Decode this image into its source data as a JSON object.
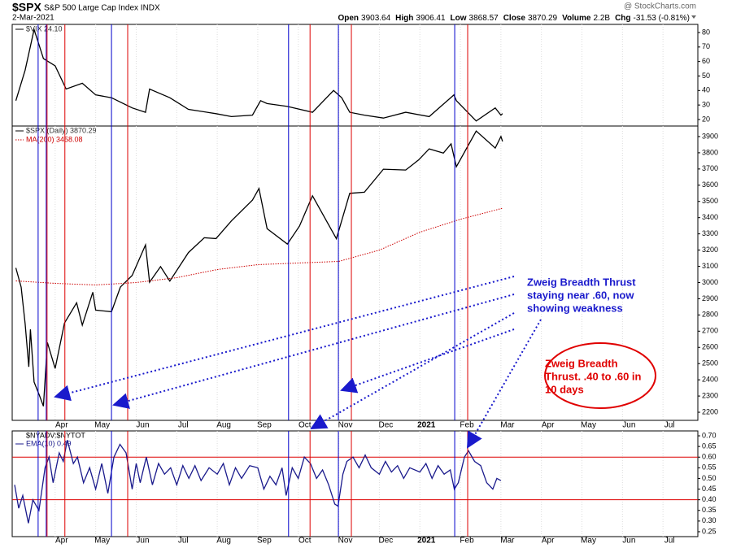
{
  "header": {
    "symbol": "$SPX",
    "name": "S&P 500 Large Cap Index INDX",
    "date": "2-Mar-2021",
    "watermark": "@ StockCharts.com",
    "quote": [
      {
        "label": "Open",
        "value": "3903.64"
      },
      {
        "label": "High",
        "value": "3906.41"
      },
      {
        "label": "Low",
        "value": "3868.57"
      },
      {
        "label": "Close",
        "value": "3870.29"
      },
      {
        "label": "Volume",
        "value": "2.2B"
      },
      {
        "label": "Chg",
        "value": "-31.53 (-0.81%)"
      }
    ]
  },
  "chart_data": [
    {
      "type": "line",
      "ylim": [
        15.5,
        85.6
      ],
      "yticks": [
        20,
        30,
        40,
        50,
        60,
        70,
        80
      ],
      "series": [
        {
          "name": "$VIX 24.10",
          "color": "#000000",
          "x": [
            3.03,
            3.26,
            3.48,
            3.55,
            3.71,
            4.0,
            4.27,
            4.67,
            5.0,
            5.39,
            5.9,
            6.23,
            6.33,
            6.83,
            7.29,
            7.97,
            8.35,
            8.87,
            9.07,
            9.23,
            9.73,
            10.35,
            10.87,
            11.07,
            11.27,
            11.63,
            12.1,
            12.65,
            13.23,
            13.84,
            13.9,
            14.39,
            14.86,
            15.0,
            15.04
          ],
          "values": [
            33,
            54,
            82,
            76,
            62,
            57,
            41,
            45,
            37,
            35,
            28,
            25,
            41,
            35,
            27,
            24,
            22,
            23,
            33,
            31,
            29,
            25,
            40,
            35,
            25,
            23,
            21,
            25,
            22,
            37,
            33,
            19,
            28,
            23,
            24.1
          ]
        }
      ]
    },
    {
      "type": "line",
      "ylim": [
        2150,
        3965
      ],
      "yticks": [
        2200,
        2300,
        2400,
        2500,
        2600,
        2700,
        2800,
        2900,
        3000,
        3100,
        3200,
        3300,
        3400,
        3500,
        3600,
        3700,
        3800,
        3900
      ],
      "series": [
        {
          "name": "$SPX (Daily) 3870.29",
          "color": "#000000",
          "x": [
            3.03,
            3.16,
            3.26,
            3.35,
            3.39,
            3.48,
            3.61,
            3.71,
            3.81,
            4.0,
            4.23,
            4.53,
            4.67,
            4.93,
            5.0,
            5.39,
            5.61,
            5.9,
            6.23,
            6.33,
            6.6,
            6.83,
            7.29,
            7.68,
            7.97,
            8.35,
            8.87,
            9.03,
            9.23,
            9.73,
            10.03,
            10.35,
            10.94,
            11.27,
            11.63,
            12.1,
            12.65,
            12.97,
            13.23,
            13.58,
            13.77,
            13.9,
            14.39,
            14.86,
            15.0,
            15.04
          ],
          "values": [
            3090,
            2972,
            2746,
            2480,
            2711,
            2386,
            2305,
            2237,
            2630,
            2470,
            2750,
            2875,
            2737,
            2940,
            2830,
            2820,
            2972,
            3044,
            3232,
            3002,
            3098,
            3009,
            3185,
            3276,
            3271,
            3380,
            3508,
            3580,
            3332,
            3237,
            3348,
            3535,
            3270,
            3550,
            3557,
            3699,
            3694,
            3756,
            3824,
            3798,
            3855,
            3714,
            3934,
            3829,
            3901,
            3870.29
          ]
        },
        {
          "name": "MA(200) 3458.08",
          "color": "#cc0000",
          "style": "dotted",
          "x": [
            3.03,
            4.0,
            5.0,
            6.0,
            7.0,
            8.0,
            9.0,
            10.0,
            11.0,
            12.0,
            13.0,
            14.0,
            15.04
          ],
          "values": [
            3010,
            2995,
            2985,
            3000,
            3030,
            3080,
            3110,
            3120,
            3130,
            3200,
            3310,
            3390,
            3458.08
          ]
        }
      ],
      "vlines": [
        {
          "x": 3.58,
          "color": "#0000cc"
        },
        {
          "x": 3.78,
          "color": "#0000cc"
        },
        {
          "x": 5.39,
          "color": "#0000cc"
        },
        {
          "x": 9.76,
          "color": "#0000cc"
        },
        {
          "x": 10.99,
          "color": "#0000cc"
        },
        {
          "x": 13.86,
          "color": "#0000cc"
        },
        {
          "x": 3.8,
          "color": "#dd0000"
        },
        {
          "x": 4.24,
          "color": "#dd0000"
        },
        {
          "x": 5.79,
          "color": "#dd0000"
        },
        {
          "x": 10.29,
          "color": "#dd0000"
        },
        {
          "x": 11.31,
          "color": "#dd0000"
        },
        {
          "x": 14.18,
          "color": "#dd0000"
        }
      ],
      "annotations": [
        {
          "lines": [
            "Zweig Breadth Thrust",
            "staying near .60, now",
            "showing weakness"
          ],
          "color": "#1a1acc"
        },
        {
          "lines": [
            "Zweig Breadth",
            "Thrust. .40 to .60 in",
            "10 days"
          ],
          "color": "#e00000"
        }
      ]
    },
    {
      "type": "line",
      "title": "$NYADV:$NYTOT",
      "xlim": [
        2.94,
        19.86
      ],
      "ylim": [
        0.227,
        0.723
      ],
      "yticks": [
        {
          "value": 0.25,
          "label": "0.25"
        },
        {
          "value": 0.3,
          "label": "0.30"
        },
        {
          "value": 0.35,
          "label": "0.35"
        },
        {
          "value": 0.4,
          "label": "0.40"
        },
        {
          "value": 0.45,
          "label": "0.45"
        },
        {
          "value": 0.5,
          "label": "0.50"
        },
        {
          "value": 0.55,
          "label": "0.55"
        },
        {
          "value": 0.6,
          "label": "0.60"
        },
        {
          "value": 0.65,
          "label": "0.65"
        },
        {
          "value": 0.7,
          "label": "0.70"
        }
      ],
      "xticks": [
        {
          "value": 4,
          "label": "Apr"
        },
        {
          "value": 5,
          "label": "May"
        },
        {
          "value": 6,
          "label": "Jun"
        },
        {
          "value": 7,
          "label": "Jul"
        },
        {
          "value": 8,
          "label": "Aug"
        },
        {
          "value": 9,
          "label": "Sep"
        },
        {
          "value": 10,
          "label": "Oct"
        },
        {
          "value": 11,
          "label": "Nov"
        },
        {
          "value": 12,
          "label": "Dec"
        },
        {
          "value": 13,
          "label": "2021"
        },
        {
          "value": 14,
          "label": "Feb"
        },
        {
          "value": 15,
          "label": "Mar"
        },
        {
          "value": 16,
          "label": "Apr"
        },
        {
          "value": 17,
          "label": "May"
        },
        {
          "value": 18,
          "label": "Jun"
        },
        {
          "value": 19,
          "label": "Jul"
        }
      ],
      "hlines": {
        "values": [
          0.6,
          0.4
        ],
        "color": "#dd0000"
      },
      "series": [
        {
          "name": "EMA(10) 0.49",
          "color": "#1a1a8c",
          "x": [
            3.0,
            3.1,
            3.2,
            3.34,
            3.45,
            3.6,
            3.75,
            3.85,
            3.95,
            4.1,
            4.2,
            4.3,
            4.45,
            4.55,
            4.7,
            4.85,
            5.0,
            5.15,
            5.3,
            5.45,
            5.6,
            5.75,
            5.9,
            6.0,
            6.1,
            6.25,
            6.4,
            6.55,
            6.7,
            6.85,
            7.0,
            7.15,
            7.3,
            7.45,
            7.6,
            7.8,
            8.0,
            8.15,
            8.3,
            8.45,
            8.6,
            8.8,
            9.0,
            9.15,
            9.3,
            9.45,
            9.6,
            9.7,
            9.85,
            10.0,
            10.15,
            10.3,
            10.45,
            10.6,
            10.75,
            10.9,
            10.98,
            11.1,
            11.2,
            11.35,
            11.5,
            11.65,
            11.8,
            12.0,
            12.15,
            12.3,
            12.45,
            12.6,
            12.75,
            13.0,
            13.15,
            13.3,
            13.45,
            13.6,
            13.75,
            13.85,
            13.95,
            14.1,
            14.2,
            14.35,
            14.5,
            14.65,
            14.8,
            14.9,
            15.0
          ],
          "values": [
            0.47,
            0.36,
            0.42,
            0.29,
            0.4,
            0.35,
            0.55,
            0.6,
            0.48,
            0.62,
            0.58,
            0.68,
            0.57,
            0.6,
            0.48,
            0.55,
            0.45,
            0.57,
            0.43,
            0.6,
            0.66,
            0.62,
            0.45,
            0.57,
            0.48,
            0.6,
            0.47,
            0.57,
            0.52,
            0.55,
            0.47,
            0.56,
            0.5,
            0.56,
            0.49,
            0.55,
            0.52,
            0.57,
            0.47,
            0.55,
            0.5,
            0.56,
            0.55,
            0.45,
            0.51,
            0.47,
            0.55,
            0.42,
            0.55,
            0.5,
            0.6,
            0.57,
            0.5,
            0.54,
            0.47,
            0.38,
            0.37,
            0.52,
            0.58,
            0.6,
            0.55,
            0.61,
            0.55,
            0.52,
            0.58,
            0.53,
            0.56,
            0.5,
            0.55,
            0.53,
            0.57,
            0.5,
            0.56,
            0.52,
            0.54,
            0.45,
            0.48,
            0.6,
            0.63,
            0.58,
            0.56,
            0.48,
            0.45,
            0.5,
            0.49
          ]
        }
      ]
    }
  ]
}
